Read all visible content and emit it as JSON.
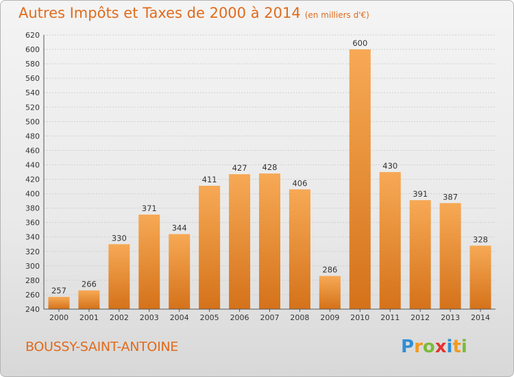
{
  "title": "Autres Impôts et Taxes de 2000 à 2014",
  "subtitle": "(en milliers d'€)",
  "commune": "BOUSSY-SAINT-ANTOINE",
  "logo": {
    "text": "Proxiti",
    "letters": [
      {
        "ch": "P",
        "color": "#2f8fd6"
      },
      {
        "ch": "r",
        "color": "#f29a1e"
      },
      {
        "ch": "o",
        "color": "#7cba3a"
      },
      {
        "ch": "x",
        "color": "#e3342f"
      },
      {
        "ch": "i",
        "color": "#2f8fd6"
      },
      {
        "ch": "t",
        "color": "#f29a1e"
      },
      {
        "ch": "i",
        "color": "#7cba3a"
      }
    ]
  },
  "chart_data": {
    "type": "bar",
    "categories": [
      "2000",
      "2001",
      "2002",
      "2003",
      "2004",
      "2005",
      "2006",
      "2007",
      "2008",
      "2009",
      "2010",
      "2011",
      "2012",
      "2013",
      "2014"
    ],
    "values": [
      257,
      266,
      330,
      371,
      344,
      411,
      427,
      428,
      406,
      286,
      600,
      430,
      391,
      387,
      328
    ],
    "ylim": [
      240,
      620
    ],
    "yticks": [
      240,
      260,
      280,
      300,
      320,
      340,
      360,
      380,
      400,
      420,
      440,
      460,
      480,
      500,
      520,
      540,
      560,
      580,
      600,
      620
    ],
    "grid": true,
    "bar_color": "#f0922e",
    "bar_color_light": "#f7a955",
    "bar_color_dark": "#d4721a"
  }
}
